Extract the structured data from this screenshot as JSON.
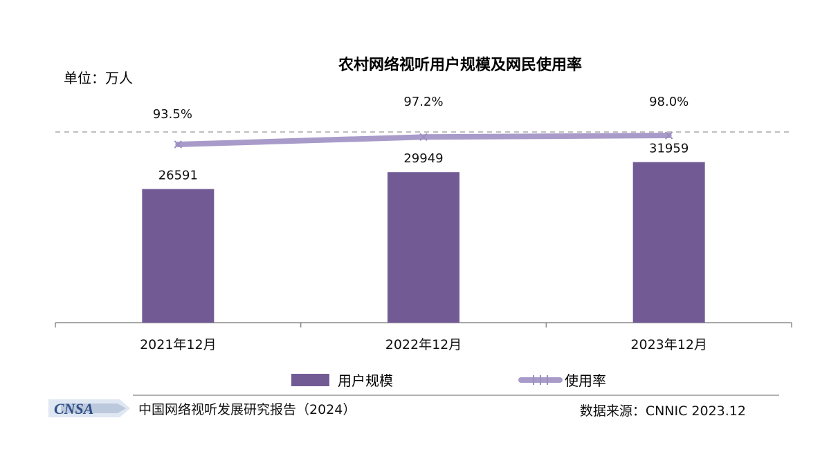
{
  "chart_data": {
    "type": "bar",
    "title": "农村网络视听用户规模及网民使用率",
    "unit_label": "单位：万人",
    "categories": [
      "2021年12月",
      "2022年12月",
      "2023年12月"
    ],
    "series": [
      {
        "name": "用户规模",
        "type": "bar",
        "values": [
          26591,
          29949,
          31959
        ],
        "labels": [
          "26591",
          "29949",
          "31959"
        ],
        "color": "#725b95"
      },
      {
        "name": "使用率",
        "type": "line",
        "values": [
          93.5,
          97.2,
          98.0
        ],
        "labels": [
          "93.5%",
          "97.2%",
          "98.0%"
        ],
        "color": "#a89bc9"
      }
    ],
    "legend_placement": "bottom-center",
    "grid": false
  },
  "footer": {
    "logo_text": "CNSA",
    "left_text": "中国网络视听发展研究报告（2024）",
    "right_text": "数据来源：CNNIC  2023.12"
  }
}
